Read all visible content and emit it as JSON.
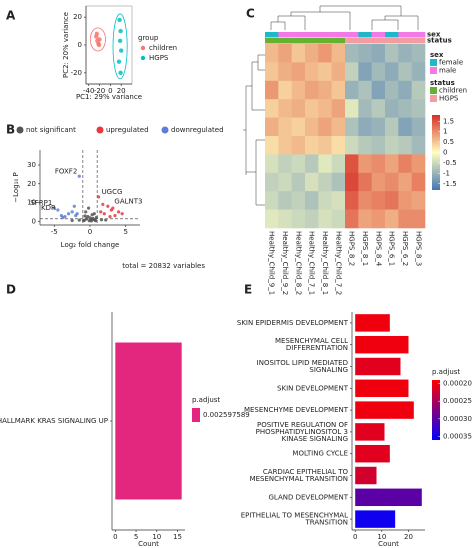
{
  "chart_data": [
    {
      "panel": "A",
      "type": "scatter",
      "xlabel": "PC1: 29% variance",
      "ylabel": "PC2: 20% variance",
      "legend_title": "group",
      "legend": "right",
      "ellipse": true,
      "xlim": [
        -45,
        40
      ],
      "ylim": [
        -28,
        28
      ],
      "xticks": [
        -40,
        -20,
        0,
        20
      ],
      "yticks": [
        -20,
        0,
        20
      ],
      "series": [
        {
          "name": "children",
          "color": "#f8766d",
          "x": [
            -26,
            -24,
            -22,
            -20,
            -21,
            -25
          ],
          "values": [
            6,
            3,
            1,
            4,
            0,
            8
          ]
        },
        {
          "name": "HGPS",
          "color": "#00bfc4",
          "x": [
            17,
            19,
            18,
            20,
            16,
            19
          ],
          "values": [
            18,
            10,
            3,
            -4,
            -12,
            -20
          ]
        }
      ]
    },
    {
      "panel": "B",
      "type": "scatter",
      "xlabel": "Log₂ fold change",
      "ylabel": "−Log₁₀ P",
      "legend": "top",
      "footnote": "total = 20832 variables",
      "xlim": [
        -7,
        7
      ],
      "ylim": [
        -2,
        38
      ],
      "xticks": [
        -5,
        0,
        5
      ],
      "yticks": [
        0,
        10,
        20,
        30
      ],
      "thresholds": {
        "x": [
          -1,
          1
        ],
        "y": 1.3
      },
      "series": [
        {
          "name": "not significant",
          "color": "#555555",
          "x": [
            -0.8,
            -0.5,
            -0.3,
            -0.1,
            0.1,
            0.3,
            0.5,
            0.7,
            0.9,
            -0.9,
            -0.6,
            0.2,
            0.6,
            -0.2,
            0.4,
            -1.5,
            1.6,
            -2.5,
            2.2,
            0,
            0.8,
            -0.7
          ],
          "values": [
            0.5,
            1.2,
            2.5,
            0.3,
            0.8,
            3.5,
            1.0,
            0.6,
            2.0,
            0.4,
            5,
            0.2,
            4,
            7,
            1.5,
            0.6,
            0.8,
            0.4,
            0.7,
            1.8,
            0.3,
            2.8
          ]
        },
        {
          "name": "upregulated",
          "color": "#e8383d",
          "x": [
            1.2,
            1.5,
            2.0,
            2.5,
            3.0,
            3.5,
            4.0,
            2.8,
            1.8,
            4.5,
            3.2
          ],
          "values": [
            13,
            5,
            4,
            8,
            6,
            3,
            5,
            2.5,
            9,
            4,
            7
          ]
        },
        {
          "name": "downregulated",
          "color": "#5b7fd6",
          "x": [
            -1.5,
            -2,
            -2.5,
            -3,
            -3.5,
            -4,
            -4.5,
            -5,
            -2.2,
            -1.8,
            -3.8
          ],
          "values": [
            24,
            3,
            5,
            4,
            2.5,
            3,
            6,
            7,
            8,
            4,
            2
          ]
        }
      ],
      "annotations": [
        {
          "text": "FOXF2",
          "x": -1.5,
          "y": 24
        },
        {
          "text": "UGCG",
          "x": 1.2,
          "y": 13
        },
        {
          "text": "GALNT3",
          "x": 3,
          "y": 8
        },
        {
          "text": "SFRP1",
          "x": -5,
          "y": 7
        },
        {
          "text": "KDR",
          "x": -4.5,
          "y": 4.5
        }
      ]
    },
    {
      "panel": "C",
      "type": "heatmap",
      "columns": [
        "Healthy_Child_9_1",
        "Healthy_Child_9_2",
        "Healthy_Child_8_2",
        "Healthy_Child_7_1",
        "Healthy_Child_8_1",
        "Healthy_Child_7_2",
        "HGPS_8_2",
        "HGPS_8_1",
        "HGPS_8_4",
        "HGPS_6_1",
        "HGPS_6_2",
        "HGPS_8_3"
      ],
      "annotations": [
        {
          "name": "sex",
          "levels": [
            "female",
            "male"
          ],
          "colors": [
            "#1fb8c9",
            "#f37ae6"
          ],
          "values": [
            "female",
            "male",
            "male",
            "male",
            "male",
            "male",
            "male",
            "female",
            "male",
            "female",
            "male",
            "male"
          ]
        },
        {
          "name": "status",
          "levels": [
            "children",
            "HGPS"
          ],
          "colors": [
            "#66b032",
            "#f49ca4"
          ],
          "values": [
            "children",
            "children",
            "children",
            "children",
            "children",
            "children",
            "HGPS",
            "HGPS",
            "HGPS",
            "HGPS",
            "HGPS",
            "HGPS"
          ]
        }
      ],
      "colors": [
        "#4575b4",
        "#ffffbf",
        "#d73027"
      ],
      "clim": [
        -1.8,
        1.8
      ],
      "cticks": [
        -1.5,
        -1,
        -0.5,
        0,
        0.5,
        1,
        1.5
      ],
      "matrix": [
        [
          0.6,
          0.8,
          0.5,
          0.7,
          0.9,
          0.6,
          -0.9,
          -1.0,
          -1.1,
          -0.8,
          -1.0,
          -0.9
        ],
        [
          0.5,
          0.7,
          0.8,
          0.6,
          0.5,
          0.7,
          -0.6,
          -1.2,
          -0.9,
          -1.1,
          -0.8,
          -1.0
        ],
        [
          0.9,
          0.4,
          0.6,
          0.8,
          0.7,
          0.5,
          -1.0,
          -0.8,
          -1.2,
          -0.9,
          -1.1,
          -0.7
        ],
        [
          0.4,
          0.6,
          0.7,
          0.5,
          0.6,
          0.8,
          -0.3,
          -0.9,
          -0.7,
          -1.0,
          -0.9,
          -0.8
        ],
        [
          0.7,
          0.5,
          0.4,
          0.6,
          0.8,
          0.6,
          -0.8,
          -1.1,
          -1.0,
          -0.7,
          -1.2,
          -1.0
        ],
        [
          0.3,
          0.5,
          0.6,
          0.4,
          0.5,
          0.3,
          -0.5,
          -0.7,
          -0.8,
          -0.6,
          -0.7,
          -0.9
        ],
        [
          -0.4,
          -0.6,
          -0.5,
          -0.7,
          -0.3,
          -0.5,
          1.5,
          0.9,
          1.0,
          0.8,
          1.1,
          0.9
        ],
        [
          -0.6,
          -0.5,
          -0.7,
          -0.4,
          -0.6,
          -0.8,
          1.6,
          1.2,
          0.9,
          1.0,
          0.8,
          1.1
        ],
        [
          -0.5,
          -0.7,
          -0.6,
          -0.8,
          -0.5,
          -0.4,
          1.4,
          1.0,
          1.1,
          1.2,
          0.9,
          0.8
        ],
        [
          -0.3,
          -0.4,
          -0.5,
          -0.6,
          -0.4,
          -0.5,
          1.2,
          0.8,
          0.9,
          0.7,
          1.0,
          1.0
        ]
      ]
    },
    {
      "panel": "D",
      "type": "barh",
      "xlabel": "Count",
      "legend_title": "p.adjust",
      "color": "#e3277f",
      "categories": [
        "HALLMARK KRAS SIGNALING UP"
      ],
      "values": [
        16
      ],
      "p_adjust": [
        0.002597589
      ],
      "xlim": [
        -0.8,
        16.8
      ],
      "xticks": [
        0,
        5,
        10,
        15
      ]
    },
    {
      "panel": "E",
      "type": "barh",
      "xlabel": "Count",
      "legend_title": "p.adjust",
      "colors": {
        "low": "#ff0000",
        "high": "#0000ff"
      },
      "categories": [
        [
          "SKIN EPIDERMIS DEVELOPMENT"
        ],
        [
          "MESENCHYMAL CELL",
          "DIFFERENTIATION"
        ],
        [
          "INOSITOL LIPID MEDIATED",
          "SIGNALING"
        ],
        [
          "SKIN DEVELOPMENT"
        ],
        [
          "MESENCHYME DEVELOPMENT"
        ],
        [
          "POSITIVE REGULATION OF",
          "PHOSPHATIDYLINOSITOL 3",
          "KINASE SIGNALING"
        ],
        [
          "MOLTING CYCLE"
        ],
        [
          "CARDIAC EPITHELIAL TO",
          "MESENCHYMAL TRANSITION"
        ],
        [
          "GLAND DEVELOPMENT"
        ],
        [
          "EPITHELIAL TO MESENCHYMAL",
          "TRANSITION"
        ]
      ],
      "values": [
        13,
        20,
        17,
        20,
        22,
        11,
        13,
        8,
        25,
        15
      ],
      "p_adjust": [
        0.0002,
        0.0002,
        0.00021,
        0.0002,
        0.0002,
        0.00021,
        0.00021,
        0.00022,
        0.0003,
        0.00035
      ],
      "clim": [
        0.00019,
        0.00036
      ],
      "cticks": [
        {
          "value": 0.0002,
          "label": "0.00020"
        },
        0.00025,
        {
          "value": 0.0003,
          "label": "0.00030"
        },
        0.00035
      ],
      "xlim": [
        -1.2,
        26.2
      ],
      "xticks": [
        0,
        10,
        20
      ]
    }
  ]
}
